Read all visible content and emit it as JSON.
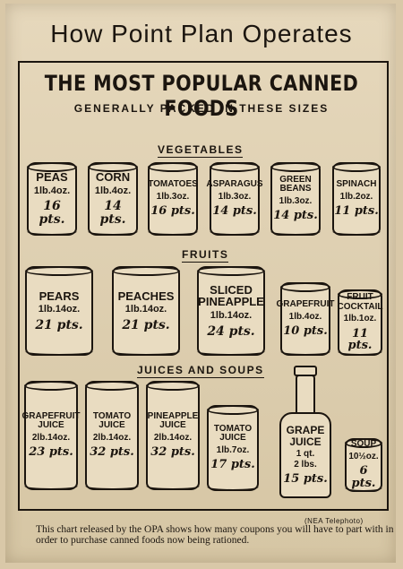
{
  "headline": "How Point Plan Operates",
  "title": "THE MOST POPULAR CANNED FOODS",
  "subtitle": "GENERALLY PACKED IN THESE SIZES",
  "sections": {
    "vegetables": "VEGETABLES",
    "fruits": "FRUITS",
    "juices_soups": "JUICES AND SOUPS"
  },
  "vegetables": [
    {
      "name": "PEAS",
      "size": "1lb.4oz.",
      "points": "16 pts."
    },
    {
      "name": "CORN",
      "size": "1lb.4oz.",
      "points": "14 pts."
    },
    {
      "name": "TOMATOES",
      "size": "1lb.3oz.",
      "points": "16 pts."
    },
    {
      "name": "ASPARAGUS",
      "size": "1lb.3oz.",
      "points": "14 pts."
    },
    {
      "name": "GREEN BEANS",
      "size": "1lb.3oz.",
      "points": "14 pts."
    },
    {
      "name": "SPINACH",
      "size": "1lb.2oz.",
      "points": "11 pts."
    }
  ],
  "fruits": [
    {
      "name": "PEARS",
      "size": "1lb.14oz.",
      "points": "21 pts."
    },
    {
      "name": "PEACHES",
      "size": "1lb.14oz.",
      "points": "21 pts."
    },
    {
      "name": "SLICED PINEAPPLE",
      "size": "1lb.14oz.",
      "points": "24 pts."
    },
    {
      "name": "GRAPEFRUIT",
      "size": "1lb.4oz.",
      "points": "10 pts."
    },
    {
      "name": "FRUIT COCKTAIL",
      "size": "1lb.1oz.",
      "points": "11 pts."
    }
  ],
  "juices_soups": [
    {
      "name": "GRAPEFRUIT JUICE",
      "size": "2lb.14oz.",
      "points": "23 pts."
    },
    {
      "name": "TOMATO JUICE",
      "size": "2lb.14oz.",
      "points": "32 pts."
    },
    {
      "name": "PINEAPPLE JUICE",
      "size": "2lb.14oz.",
      "points": "32 pts."
    },
    {
      "name": "TOMATO JUICE",
      "size": "1lb.7oz.",
      "points": "17 pts."
    },
    {
      "name": "GRAPE JUICE",
      "size": "1 qt.",
      "size2": "2 lbs.",
      "points": "15 pts."
    },
    {
      "name": "SOUP",
      "size": "10½oz.",
      "points": "6 pts."
    }
  ],
  "credit": "(NEA Telephoto)",
  "caption": "This chart released by the OPA shows how many coupons you will have to part with in order to purchase canned foods now being rationed."
}
